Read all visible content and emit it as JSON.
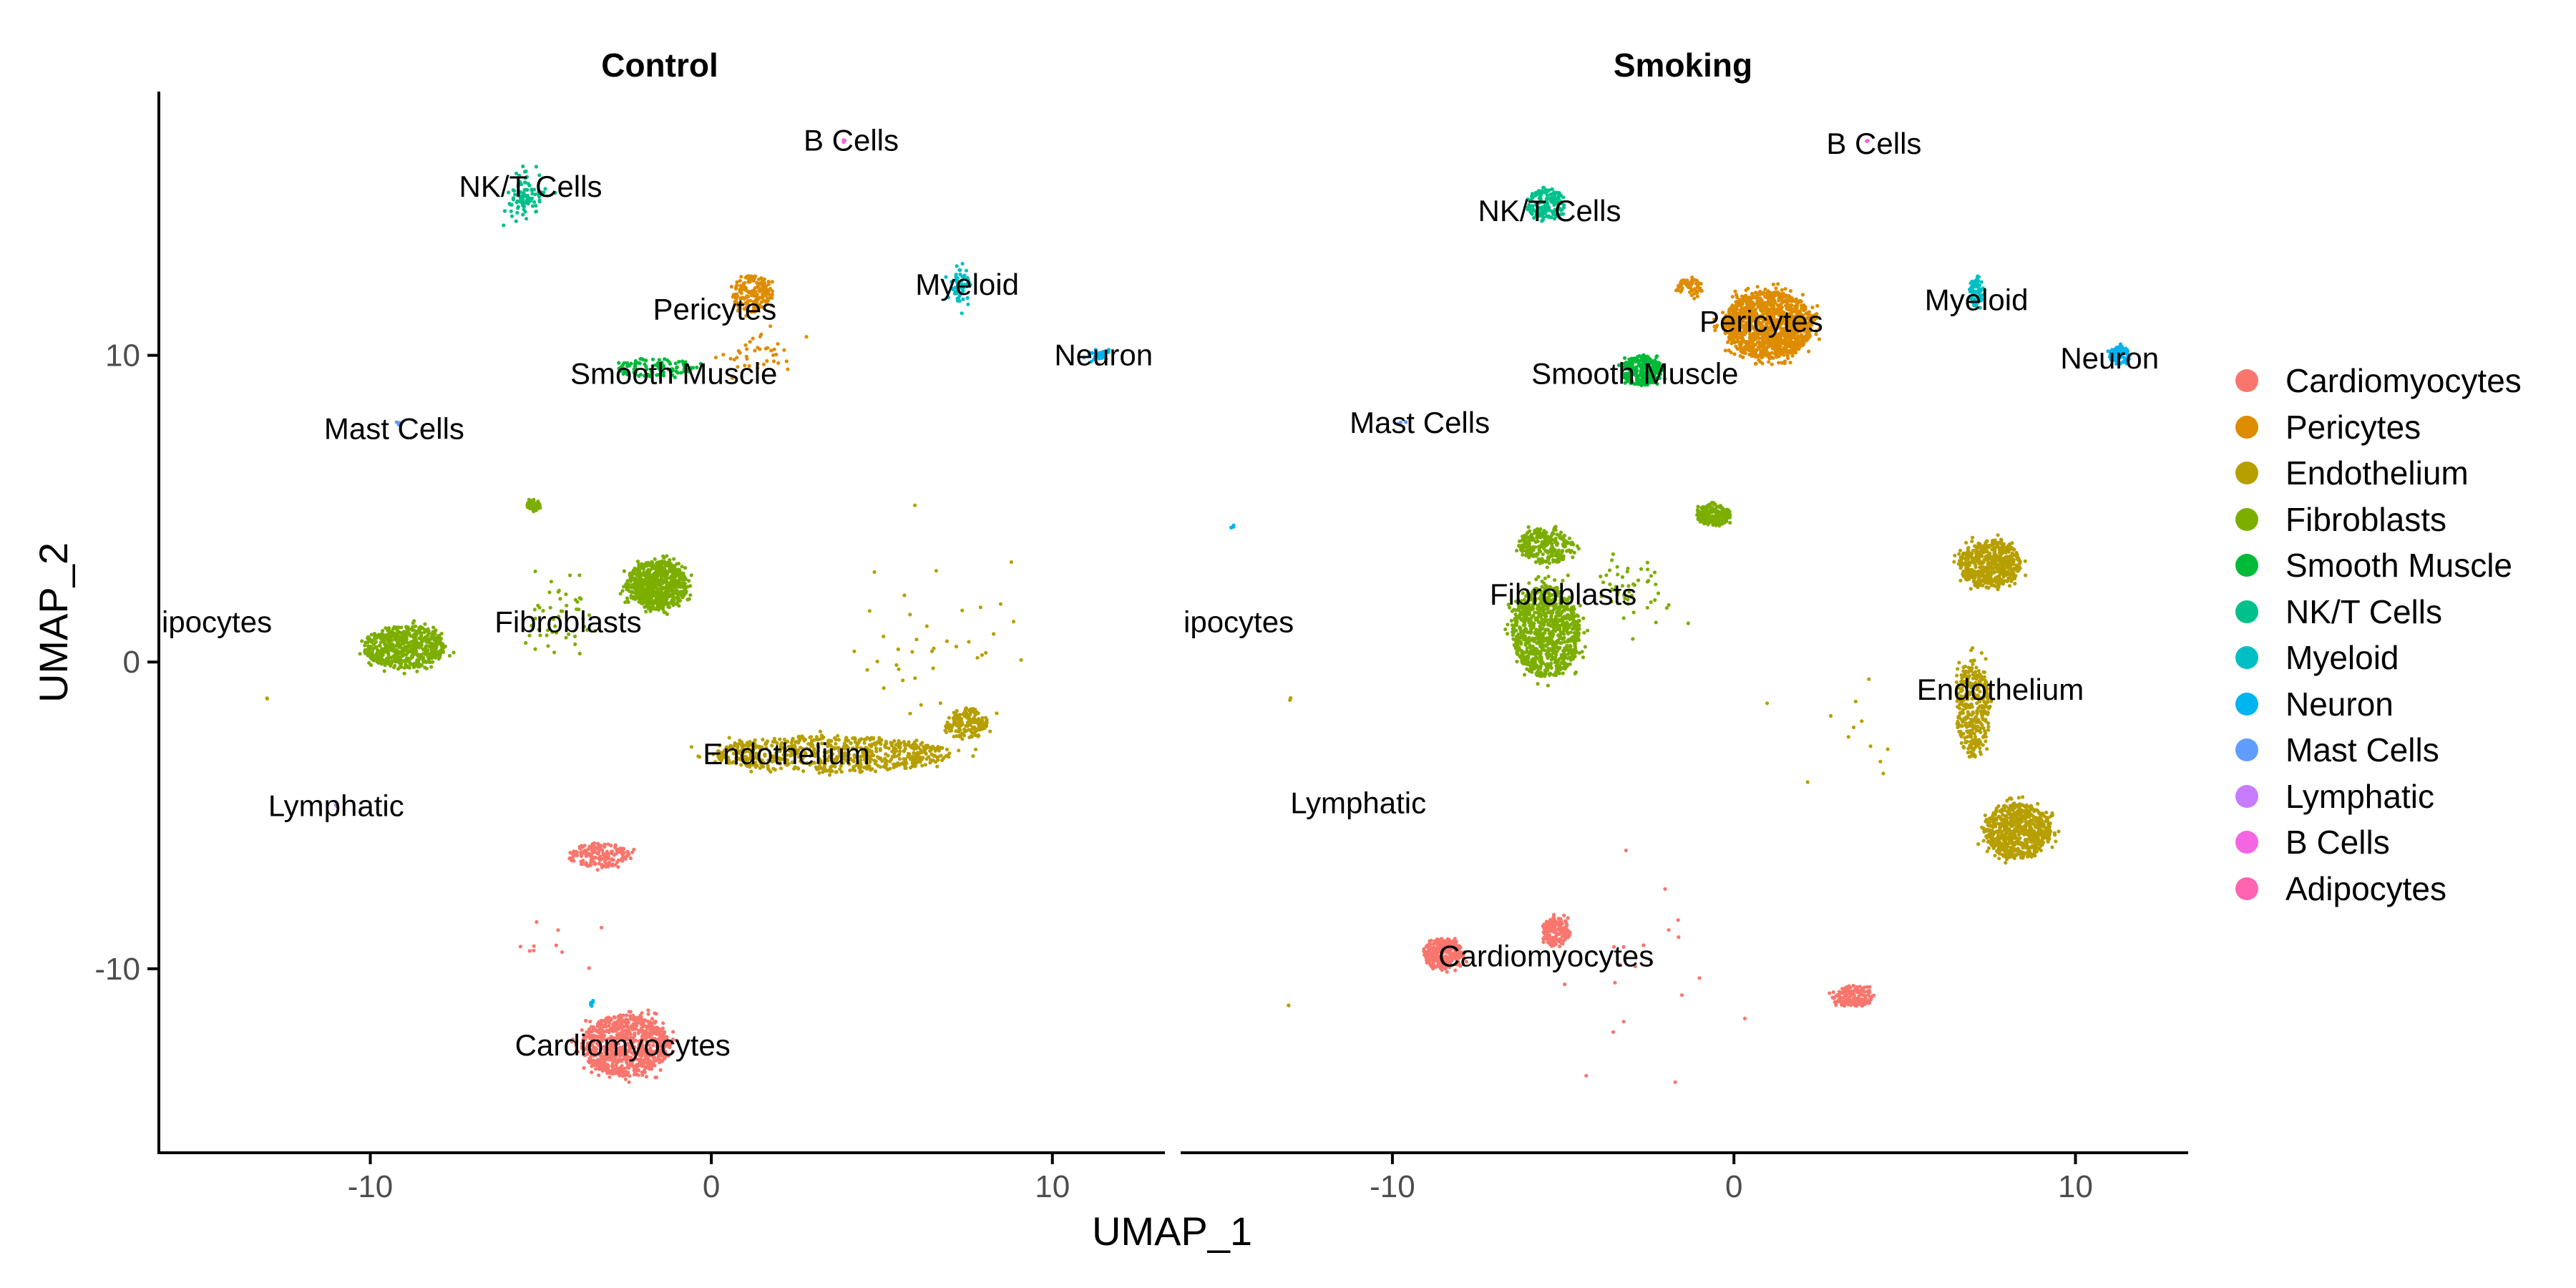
{
  "chart_data": {
    "type": "scatter",
    "x_axis_label": "UMAP_1",
    "y_axis_label": "UMAP_2",
    "xlim": [
      -16.2,
      13.3
    ],
    "ylim": [
      -16.0,
      18.6
    ],
    "x_ticks": [
      -10,
      0,
      10
    ],
    "y_ticks": [
      -10,
      0,
      10
    ],
    "x_tick_labels": [
      "-10",
      "0",
      "10"
    ],
    "y_tick_labels": [
      "-10",
      "0",
      "10"
    ],
    "grid": false,
    "legend_position": "right",
    "legend": [
      {
        "name": "Cardiomyocytes",
        "color": "#F8766D"
      },
      {
        "name": "Pericytes",
        "color": "#DE8C00"
      },
      {
        "name": "Endothelium",
        "color": "#B79F00"
      },
      {
        "name": "Fibroblasts",
        "color": "#7CAE00"
      },
      {
        "name": "Smooth Muscle",
        "color": "#00BA38"
      },
      {
        "name": "NK/T Cells",
        "color": "#00C08B"
      },
      {
        "name": "Myeloid",
        "color": "#00BFC4"
      },
      {
        "name": "Neuron",
        "color": "#00B4F0"
      },
      {
        "name": "Mast Cells",
        "color": "#619CFF"
      },
      {
        "name": "Lymphatic",
        "color": "#C77CFF"
      },
      {
        "name": "B Cells",
        "color": "#F564E3"
      },
      {
        "name": "Adipocytes",
        "color": "#FF64B0"
      }
    ],
    "panels": [
      {
        "title": "Control",
        "clusters": [
          {
            "type": "Cardiomyocytes",
            "x": -2.5,
            "y": -12.5,
            "sx": 1.3,
            "sy": 1.0,
            "n": 900,
            "shape": "blob"
          },
          {
            "type": "Cardiomyocytes",
            "x": -3.3,
            "y": -6.3,
            "sx": 0.9,
            "sy": 0.4,
            "n": 180,
            "shape": "blob"
          },
          {
            "type": "Cardiomyocytes",
            "x": -5.0,
            "y": -9.5,
            "sx": 1.2,
            "sy": 1.0,
            "n": 10,
            "shape": "scatter"
          },
          {
            "type": "Pericytes",
            "x": 1.2,
            "y": 12.0,
            "sx": 0.6,
            "sy": 0.6,
            "n": 170,
            "shape": "blob"
          },
          {
            "type": "Pericytes",
            "x": 1.5,
            "y": 10.0,
            "sx": 0.8,
            "sy": 0.6,
            "n": 40,
            "shape": "scatter"
          },
          {
            "type": "Endothelium",
            "x": 3.5,
            "y": -3.0,
            "sx": 3.5,
            "sy": 0.6,
            "n": 700,
            "shape": "blob"
          },
          {
            "type": "Endothelium",
            "x": 7.5,
            "y": -2.0,
            "sx": 0.6,
            "sy": 0.5,
            "n": 160,
            "shape": "blob"
          },
          {
            "type": "Endothelium",
            "x": 6.5,
            "y": 0.5,
            "sx": 2.2,
            "sy": 2.5,
            "n": 40,
            "shape": "scatter"
          },
          {
            "type": "Endothelium",
            "x": -13.0,
            "y": -1.2,
            "sx": 0.05,
            "sy": 0.05,
            "n": 2,
            "shape": "scatter"
          },
          {
            "type": "Fibroblasts",
            "x": -1.6,
            "y": 2.5,
            "sx": 0.9,
            "sy": 0.8,
            "n": 700,
            "shape": "blob"
          },
          {
            "type": "Fibroblasts",
            "x": -9.0,
            "y": 0.5,
            "sx": 1.2,
            "sy": 0.7,
            "n": 600,
            "shape": "blob"
          },
          {
            "type": "Fibroblasts",
            "x": -5.2,
            "y": 5.1,
            "sx": 0.2,
            "sy": 0.2,
            "n": 40,
            "shape": "blob"
          },
          {
            "type": "Fibroblasts",
            "x": -4.5,
            "y": 1.5,
            "sx": 1.0,
            "sy": 1.2,
            "n": 50,
            "shape": "scatter"
          },
          {
            "type": "Smooth Muscle",
            "x": -1.7,
            "y": 9.6,
            "sx": 1.2,
            "sy": 0.3,
            "n": 110,
            "shape": "blob"
          },
          {
            "type": "NK/T Cells",
            "x": -5.4,
            "y": 15.2,
            "sx": 0.5,
            "sy": 0.6,
            "n": 90,
            "shape": "scatter"
          },
          {
            "type": "B Cells",
            "x": 3.9,
            "y": 17.0,
            "sx": 0.05,
            "sy": 0.05,
            "n": 3,
            "shape": "scatter"
          },
          {
            "type": "Myeloid",
            "x": 7.3,
            "y": 12.3,
            "sx": 0.25,
            "sy": 0.5,
            "n": 60,
            "shape": "scatter"
          },
          {
            "type": "Neuron",
            "x": 11.3,
            "y": 10.0,
            "sx": 0.3,
            "sy": 0.15,
            "n": 30,
            "shape": "scatter"
          },
          {
            "type": "Neuron",
            "x": -3.5,
            "y": -11.1,
            "sx": 0.05,
            "sy": 0.15,
            "n": 8,
            "shape": "scatter"
          },
          {
            "type": "Mast Cells",
            "x": -9.2,
            "y": 7.8,
            "sx": 0.1,
            "sy": 0.05,
            "n": 3,
            "shape": "scatter"
          },
          {
            "type": "Lymphatic",
            "x": -11.0,
            "y": -4.7,
            "sx": 0.05,
            "sy": 0.05,
            "n": 2,
            "shape": "scatter"
          }
        ],
        "labels": [
          {
            "text": "B Cells",
            "x": 4.1,
            "y": 17.0
          },
          {
            "text": "NK/T Cells",
            "x": -5.3,
            "y": 15.5
          },
          {
            "text": "Myeloid",
            "x": 7.5,
            "y": 12.3
          },
          {
            "text": "Pericytes",
            "x": 0.1,
            "y": 11.5
          },
          {
            "text": "Neuron",
            "x": 11.5,
            "y": 10.0
          },
          {
            "text": "Smooth Muscle",
            "x": -1.1,
            "y": 9.4
          },
          {
            "text": "Mast Cells",
            "x": -9.3,
            "y": 7.6
          },
          {
            "text": "ipocytes",
            "x": -14.2,
            "y": 1.3
          },
          {
            "text": "Fibroblasts",
            "x": -4.2,
            "y": 1.3
          },
          {
            "text": "Endothelium",
            "x": 2.2,
            "y": -3.0
          },
          {
            "text": "Lymphatic",
            "x": -11.0,
            "y": -4.7
          },
          {
            "text": "Cardiomyocytes",
            "x": -2.6,
            "y": -12.5
          }
        ]
      },
      {
        "title": "Smoking",
        "clusters": [
          {
            "type": "Cardiomyocytes",
            "x": -8.5,
            "y": -9.5,
            "sx": 0.6,
            "sy": 0.5,
            "n": 300,
            "shape": "blob"
          },
          {
            "type": "Cardiomyocytes",
            "x": -5.2,
            "y": -8.8,
            "sx": 0.4,
            "sy": 0.5,
            "n": 150,
            "shape": "blob"
          },
          {
            "type": "Cardiomyocytes",
            "x": 3.5,
            "y": -10.9,
            "sx": 0.6,
            "sy": 0.35,
            "n": 180,
            "shape": "blob"
          },
          {
            "type": "Cardiomyocytes",
            "x": -2.5,
            "y": -10.0,
            "sx": 2.5,
            "sy": 2.5,
            "n": 20,
            "shape": "scatter"
          },
          {
            "type": "Pericytes",
            "x": 1.0,
            "y": 11.0,
            "sx": 1.3,
            "sy": 1.1,
            "n": 1300,
            "shape": "blob"
          },
          {
            "type": "Pericytes",
            "x": -1.3,
            "y": 12.2,
            "sx": 0.4,
            "sy": 0.3,
            "n": 60,
            "shape": "blob"
          },
          {
            "type": "Endothelium",
            "x": 7.5,
            "y": 3.2,
            "sx": 0.9,
            "sy": 0.8,
            "n": 550,
            "shape": "blob"
          },
          {
            "type": "Endothelium",
            "x": 7.0,
            "y": -1.5,
            "sx": 0.5,
            "sy": 1.6,
            "n": 350,
            "shape": "blob"
          },
          {
            "type": "Endothelium",
            "x": 8.3,
            "y": -5.5,
            "sx": 1.0,
            "sy": 0.9,
            "n": 750,
            "shape": "blob"
          },
          {
            "type": "Endothelium",
            "x": 3.0,
            "y": -2.5,
            "sx": 2.0,
            "sy": 1.5,
            "n": 12,
            "shape": "scatter"
          },
          {
            "type": "Endothelium",
            "x": -13.0,
            "y": -11.2,
            "sx": 0.05,
            "sy": 0.05,
            "n": 2,
            "shape": "scatter"
          },
          {
            "type": "Endothelium",
            "x": -13.0,
            "y": -1.2,
            "sx": 0.05,
            "sy": 0.05,
            "n": 2,
            "shape": "scatter"
          },
          {
            "type": "Fibroblasts",
            "x": -5.5,
            "y": 1.0,
            "sx": 1.0,
            "sy": 1.5,
            "n": 900,
            "shape": "blob"
          },
          {
            "type": "Fibroblasts",
            "x": -5.5,
            "y": 3.8,
            "sx": 0.8,
            "sy": 0.6,
            "n": 250,
            "shape": "blob"
          },
          {
            "type": "Fibroblasts",
            "x": -0.6,
            "y": 4.8,
            "sx": 0.5,
            "sy": 0.35,
            "n": 220,
            "shape": "blob"
          },
          {
            "type": "Fibroblasts",
            "x": -3.0,
            "y": 2.5,
            "sx": 1.2,
            "sy": 1.0,
            "n": 50,
            "shape": "scatter"
          },
          {
            "type": "Smooth Muscle",
            "x": -2.7,
            "y": 9.5,
            "sx": 0.6,
            "sy": 0.5,
            "n": 260,
            "shape": "blob"
          },
          {
            "type": "NK/T Cells",
            "x": -5.5,
            "y": 14.9,
            "sx": 0.6,
            "sy": 0.5,
            "n": 160,
            "shape": "blob"
          },
          {
            "type": "B Cells",
            "x": 3.9,
            "y": 17.0,
            "sx": 0.05,
            "sy": 0.05,
            "n": 3,
            "shape": "scatter"
          },
          {
            "type": "Myeloid",
            "x": 7.1,
            "y": 12.1,
            "sx": 0.2,
            "sy": 0.5,
            "n": 80,
            "shape": "blob"
          },
          {
            "type": "Neuron",
            "x": 11.3,
            "y": 10.0,
            "sx": 0.3,
            "sy": 0.3,
            "n": 110,
            "shape": "blob"
          },
          {
            "type": "Mast Cells",
            "x": -9.7,
            "y": 7.8,
            "sx": 0.2,
            "sy": 0.05,
            "n": 5,
            "shape": "scatter"
          },
          {
            "type": "Neuron",
            "x": -14.7,
            "y": 4.4,
            "sx": 0.05,
            "sy": 0.05,
            "n": 4,
            "shape": "scatter"
          }
        ],
        "labels": [
          {
            "text": "B Cells",
            "x": 4.1,
            "y": 16.9
          },
          {
            "text": "NK/T Cells",
            "x": -5.4,
            "y": 14.7
          },
          {
            "text": "Myeloid",
            "x": 7.1,
            "y": 11.8
          },
          {
            "text": "Pericytes",
            "x": 0.8,
            "y": 11.1
          },
          {
            "text": "Neuron",
            "x": 11.0,
            "y": 9.9
          },
          {
            "text": "Smooth Muscle",
            "x": -2.9,
            "y": 9.4
          },
          {
            "text": "Mast Cells",
            "x": -9.2,
            "y": 7.8
          },
          {
            "text": "ipocytes",
            "x": -14.2,
            "y": 1.3
          },
          {
            "text": "Fibroblasts",
            "x": -5.0,
            "y": 2.2
          },
          {
            "text": "Endothelium",
            "x": 7.8,
            "y": -0.9
          },
          {
            "text": "Lymphatic",
            "x": -11.0,
            "y": -4.6
          },
          {
            "text": "Cardiomyocytes",
            "x": -5.5,
            "y": -9.6
          }
        ]
      }
    ]
  }
}
